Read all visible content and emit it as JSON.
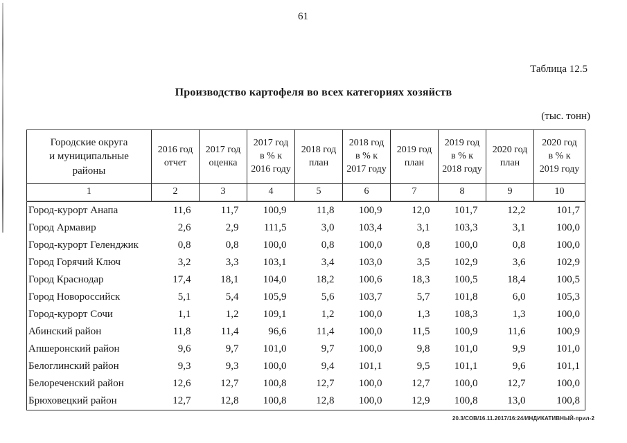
{
  "page": {
    "number": "61",
    "table_label": "Таблица 12.5",
    "title": "Производство картофеля во всех категориях хозяйств",
    "units_note": "(тыс. тонн)",
    "footer_stamp": "20.3/СОВ/16.11.2017/16:24/ИНДИКАТИВНЫЙ-прил-2"
  },
  "table": {
    "header": {
      "region_column": "Городские округа\nи муниципальные\nрайоны",
      "columns": [
        "2016 год\nотчет",
        "2017 год\nоценка",
        "2017 год\nв % к\n2016 году",
        "2018 год\nплан",
        "2018 год\nв % к\n2017 году",
        "2019 год\nплан",
        "2019 год\nв % к\n2018 году",
        "2020 год\nплан",
        "2020 год\nв % к\n2019 году"
      ],
      "numbering": [
        "1",
        "2",
        "3",
        "4",
        "5",
        "6",
        "7",
        "8",
        "9",
        "10"
      ]
    },
    "rows": [
      {
        "region": "Город-курорт Анапа",
        "values": [
          "11,6",
          "11,7",
          "100,9",
          "11,8",
          "100,9",
          "12,0",
          "101,7",
          "12,2",
          "101,7"
        ]
      },
      {
        "region": "Город Армавир",
        "values": [
          "2,6",
          "2,9",
          "111,5",
          "3,0",
          "103,4",
          "3,1",
          "103,3",
          "3,1",
          "100,0"
        ]
      },
      {
        "region": "Город-курорт Геленджик",
        "values": [
          "0,8",
          "0,8",
          "100,0",
          "0,8",
          "100,0",
          "0,8",
          "100,0",
          "0,8",
          "100,0"
        ]
      },
      {
        "region": "Город Горячий Ключ",
        "values": [
          "3,2",
          "3,3",
          "103,1",
          "3,4",
          "103,0",
          "3,5",
          "102,9",
          "3,6",
          "102,9"
        ]
      },
      {
        "region": "Город Краснодар",
        "values": [
          "17,4",
          "18,1",
          "104,0",
          "18,2",
          "100,6",
          "18,3",
          "100,5",
          "18,4",
          "100,5"
        ]
      },
      {
        "region": "Город Новороссийск",
        "values": [
          "5,1",
          "5,4",
          "105,9",
          "5,6",
          "103,7",
          "5,7",
          "101,8",
          "6,0",
          "105,3"
        ]
      },
      {
        "region": "Город-курорт Сочи",
        "values": [
          "1,1",
          "1,2",
          "109,1",
          "1,2",
          "100,0",
          "1,3",
          "108,3",
          "1,3",
          "100,0"
        ]
      },
      {
        "region": "Абинский район",
        "values": [
          "11,8",
          "11,4",
          "96,6",
          "11,4",
          "100,0",
          "11,5",
          "100,9",
          "11,6",
          "100,9"
        ]
      },
      {
        "region": "Апшеронский район",
        "values": [
          "9,6",
          "9,7",
          "101,0",
          "9,7",
          "100,0",
          "9,8",
          "101,0",
          "9,9",
          "101,0"
        ]
      },
      {
        "region": "Белоглинский район",
        "values": [
          "9,3",
          "9,3",
          "100,0",
          "9,4",
          "101,1",
          "9,5",
          "101,1",
          "9,6",
          "101,1"
        ]
      },
      {
        "region": "Белореченский район",
        "values": [
          "12,6",
          "12,7",
          "100,8",
          "12,7",
          "100,0",
          "12,7",
          "100,0",
          "12,7",
          "100,0"
        ]
      },
      {
        "region": "Брюховецкий район",
        "values": [
          "12,7",
          "12,8",
          "100,8",
          "12,8",
          "100,0",
          "12,9",
          "100,8",
          "13,0",
          "100,8"
        ]
      }
    ],
    "layout": {
      "region_col_width": 180,
      "value_col_width": 69,
      "last_col_width": 74
    }
  }
}
